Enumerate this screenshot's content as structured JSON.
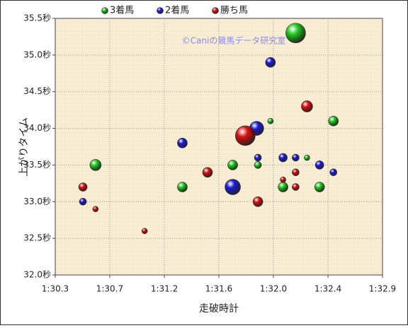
{
  "chart_data": {
    "type": "bubble",
    "x_label": "走破時計",
    "y_label": "上がりタイム",
    "annotation": "©Caniの競馬データ研究室",
    "xlim": [
      90.3,
      92.9
    ],
    "xticks": [
      {
        "value": 90.3,
        "label": "1:30.3"
      },
      {
        "value": 90.733,
        "label": "1:30.7"
      },
      {
        "value": 91.167,
        "label": "1:31.2"
      },
      {
        "value": 91.6,
        "label": "1:31.6"
      },
      {
        "value": 92.033,
        "label": "1:32.0"
      },
      {
        "value": 92.467,
        "label": "1:32.4"
      },
      {
        "value": 92.9,
        "label": "1:32.9"
      }
    ],
    "ylim": [
      32.0,
      35.5
    ],
    "yticks": [
      {
        "value": 32.0,
        "label": "32.0秒"
      },
      {
        "value": 32.5,
        "label": "32.5秒"
      },
      {
        "value": 33.0,
        "label": "33.0秒"
      },
      {
        "value": 33.5,
        "label": "33.5秒"
      },
      {
        "value": 34.0,
        "label": "34.0秒"
      },
      {
        "value": 34.5,
        "label": "34.5秒"
      },
      {
        "value": 35.0,
        "label": "35.0秒"
      },
      {
        "value": 35.5,
        "label": "35.5秒"
      }
    ],
    "grid": true,
    "legend": "top",
    "series": [
      {
        "name": "3着馬",
        "color": "#22cc22",
        "x": [
          92.21,
          90.62,
          91.31,
          91.71,
          91.91,
          92.01,
          92.11,
          92.3,
          92.4,
          92.51
        ],
        "values": [
          35.3,
          33.5,
          33.2,
          33.5,
          33.5,
          34.1,
          33.2,
          33.6,
          33.2,
          34.1
        ],
        "sizes": [
          14,
          8,
          7,
          7,
          5,
          4,
          7,
          4,
          7,
          7
        ]
      },
      {
        "name": "2着馬",
        "color": "#1a1adc",
        "x": [
          92.01,
          91.9,
          91.31,
          91.91,
          92.11,
          92.21,
          92.4,
          92.51,
          91.71,
          90.52
        ],
        "values": [
          34.9,
          34.0,
          33.8,
          33.6,
          33.6,
          33.6,
          33.5,
          33.4,
          33.2,
          33.0
        ],
        "sizes": [
          7,
          10,
          7,
          5,
          6,
          5,
          6,
          5,
          11,
          5
        ]
      },
      {
        "name": "勝ち馬",
        "color": "#dd1111",
        "x": [
          91.81,
          92.3,
          91.51,
          92.21,
          92.11,
          92.21,
          90.52,
          91.91,
          90.62,
          91.01
        ],
        "values": [
          33.9,
          34.3,
          33.4,
          33.4,
          33.3,
          33.2,
          33.2,
          33.0,
          32.9,
          32.6
        ],
        "sizes": [
          14,
          8,
          7,
          5,
          4,
          5,
          6,
          7,
          4,
          4
        ]
      }
    ]
  }
}
